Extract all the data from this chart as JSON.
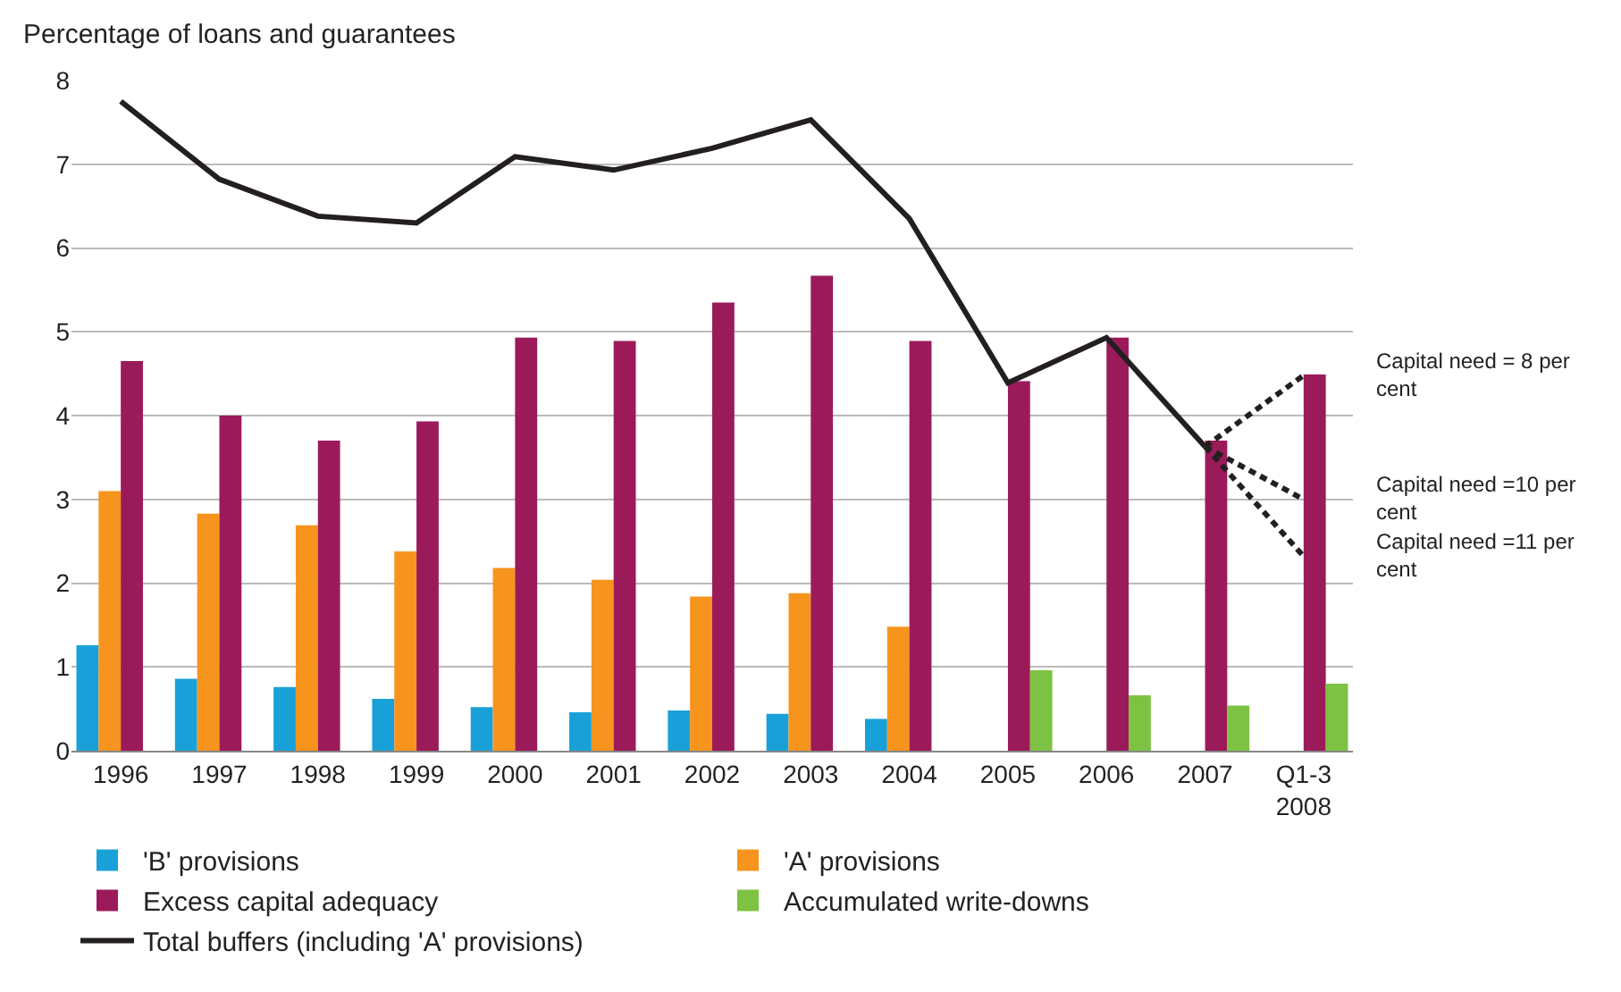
{
  "chart_data": {
    "type": "bar",
    "ylabel": "Percentage of loans and guarantees",
    "categories": [
      "1996",
      "1997",
      "1998",
      "1999",
      "2000",
      "2001",
      "2002",
      "2003",
      "2004",
      "2005",
      "2006",
      "2007",
      "Q1-3\n2008"
    ],
    "ylim": [
      0,
      8
    ],
    "yticks": [
      0,
      1,
      2,
      3,
      4,
      5,
      6,
      7,
      8
    ],
    "grid": "y",
    "legend": "bottom",
    "marker": "none",
    "series": [
      {
        "name": "'B' provisions",
        "color": "#1aa0d8",
        "values": [
          1.26,
          0.86,
          0.76,
          0.62,
          0.52,
          0.46,
          0.48,
          0.44,
          0.38,
          null,
          null,
          null,
          null
        ]
      },
      {
        "name": "'A' provisions",
        "color": "#f7941d",
        "values": [
          3.1,
          2.83,
          2.69,
          2.38,
          2.18,
          2.04,
          1.84,
          1.88,
          1.48,
          null,
          null,
          null,
          null
        ]
      },
      {
        "name": "Excess capital adequacy",
        "color": "#9b1b5a",
        "values": [
          4.65,
          4.0,
          3.7,
          3.93,
          4.93,
          4.89,
          5.35,
          5.67,
          4.89,
          4.41,
          4.93,
          3.7,
          4.49
        ]
      },
      {
        "name": "Accumulated write-downs",
        "color": "#7dc242",
        "values": [
          null,
          null,
          null,
          null,
          null,
          null,
          null,
          null,
          null,
          0.96,
          0.66,
          0.54,
          0.8
        ]
      },
      {
        "name": "Total buffers (including 'A' provisions)",
        "type": "line",
        "color": "#231f20",
        "line_style": "solid",
        "values": [
          7.75,
          6.82,
          6.38,
          6.3,
          7.09,
          6.93,
          7.19,
          7.53,
          6.35,
          4.39,
          4.93,
          3.63,
          null
        ]
      },
      {
        "type": "line",
        "color": "#231f20",
        "line_style": "dashed",
        "values": [
          null,
          null,
          null,
          null,
          null,
          null,
          null,
          null,
          null,
          null,
          null,
          3.63,
          4.48
        ]
      },
      {
        "type": "line",
        "color": "#231f20",
        "line_style": "dashed",
        "values": [
          null,
          null,
          null,
          null,
          null,
          null,
          null,
          null,
          null,
          null,
          null,
          3.63,
          3.0
        ]
      },
      {
        "type": "line",
        "color": "#231f20",
        "line_style": "dashed",
        "values": [
          null,
          null,
          null,
          null,
          null,
          null,
          null,
          null,
          null,
          null,
          null,
          3.63,
          2.32
        ]
      }
    ],
    "annotations": [
      "Capital need = 8 per\ncent",
      "Capital need =10 per\ncent",
      "Capital need =11 per\ncent"
    ]
  }
}
